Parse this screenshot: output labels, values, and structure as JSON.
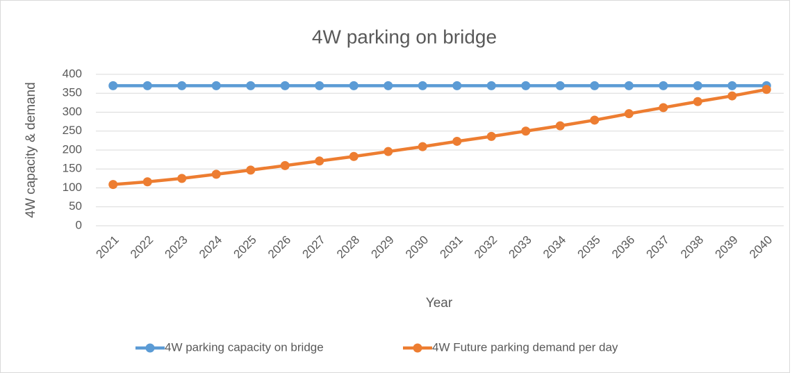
{
  "chart_data": {
    "type": "line",
    "title": "4W parking on bridge",
    "x_label": "Year",
    "y_label": "4W capacity & demand",
    "categories": [
      "2021",
      "2022",
      "2023",
      "2024",
      "2025",
      "2026",
      "2027",
      "2028",
      "2029",
      "2030",
      "2031",
      "2032",
      "2033",
      "2034",
      "2035",
      "2036",
      "2037",
      "2038",
      "2039",
      "2040"
    ],
    "series": [
      {
        "name": "4W parking capacity on bridge",
        "color": "#5b9bd5",
        "values": [
          370,
          370,
          370,
          370,
          370,
          370,
          370,
          370,
          370,
          370,
          370,
          370,
          370,
          370,
          370,
          370,
          370,
          370,
          370,
          370
        ]
      },
      {
        "name": "4W Future parking demand per day",
        "color": "#ed7d31",
        "values": [
          109,
          116,
          125,
          136,
          147,
          159,
          171,
          183,
          196,
          209,
          223,
          236,
          250,
          264,
          279,
          296,
          312,
          328,
          343,
          360
        ]
      }
    ],
    "ylim": [
      0,
      400
    ],
    "yticks": [
      0,
      50,
      100,
      150,
      200,
      250,
      300,
      350,
      400
    ],
    "grid": true,
    "legend": "bottom"
  }
}
